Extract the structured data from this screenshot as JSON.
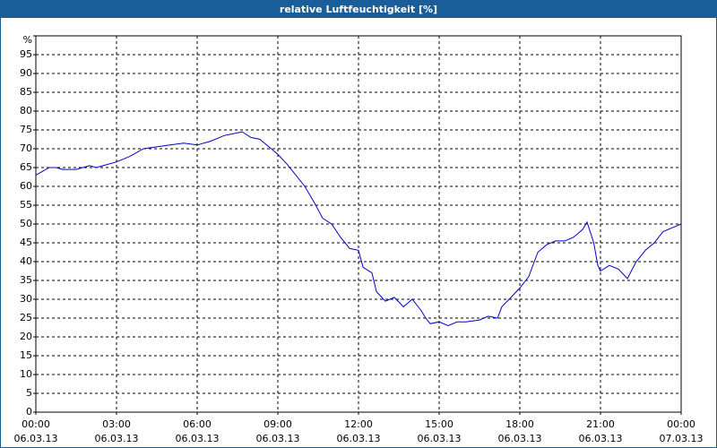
{
  "chart_data": {
    "type": "line",
    "title": "relative Luftfeuchtigkeit [%]",
    "x": [
      0,
      0.5,
      0.75,
      1,
      1.5,
      2,
      2.25,
      2.5,
      3,
      3.5,
      4,
      4.5,
      5,
      5.5,
      6,
      6.5,
      7,
      7.67,
      8,
      8.33,
      8.67,
      9,
      9.33,
      9.67,
      10,
      10.33,
      10.67,
      11,
      11.33,
      11.67,
      12,
      12.17,
      12.5,
      12.67,
      13,
      13.33,
      13.67,
      14,
      14.33,
      14.5,
      14.67,
      15,
      15.33,
      15.67,
      16,
      16.5,
      16.83,
      17.17,
      17.33,
      17.67,
      18,
      18.33,
      18.67,
      19,
      19.33,
      19.67,
      20,
      20.33,
      20.5,
      20.75,
      20.9,
      21,
      21.33,
      21.67,
      22,
      22.33,
      22.67,
      23,
      23.33,
      23.67,
      24
    ],
    "series": [
      {
        "name": "relative Luftfeuchtigkeit",
        "color": "#0000cc",
        "values": [
          63,
          65,
          65,
          64.5,
          64.5,
          65.5,
          65,
          65.5,
          66.5,
          68,
          70,
          70.5,
          71,
          71.5,
          71,
          72,
          73.5,
          74.5,
          73,
          72.5,
          70.5,
          68.5,
          66,
          63,
          60,
          56,
          51.5,
          50,
          46.5,
          43.5,
          43,
          38.5,
          37,
          32,
          29.5,
          30.5,
          28,
          30,
          27,
          25,
          23.5,
          24,
          23,
          24,
          24,
          24.5,
          25.5,
          25,
          28,
          30.5,
          33,
          36,
          42.5,
          44.5,
          45.5,
          45.5,
          46.5,
          48.5,
          50.5,
          45,
          39,
          37.5,
          39,
          38,
          35.5,
          40,
          43,
          45,
          48,
          49,
          50
        ]
      }
    ],
    "xlim": [
      0,
      24
    ],
    "xticks": [
      {
        "value": 0,
        "label": "00:00",
        "date": "06.03.13"
      },
      {
        "value": 3,
        "label": "03:00",
        "date": "06.03.13"
      },
      {
        "value": 6,
        "label": "06:00",
        "date": "06.03.13"
      },
      {
        "value": 9,
        "label": "09:00",
        "date": "06.03.13"
      },
      {
        "value": 12,
        "label": "12:00",
        "date": "06.03.13"
      },
      {
        "value": 15,
        "label": "15:00",
        "date": "06.03.13"
      },
      {
        "value": 18,
        "label": "18:00",
        "date": "06.03.13"
      },
      {
        "value": 21,
        "label": "21:00",
        "date": "06.03.13"
      },
      {
        "value": 24,
        "label": "00:00",
        "date": "07.03.13"
      }
    ],
    "ylim": [
      0,
      100
    ],
    "yticks": [
      0,
      5,
      10,
      15,
      20,
      25,
      30,
      35,
      40,
      45,
      50,
      55,
      60,
      65,
      70,
      75,
      80,
      85,
      90,
      95,
      {
        "value": 100,
        "label": "%"
      }
    ],
    "grid": true
  }
}
